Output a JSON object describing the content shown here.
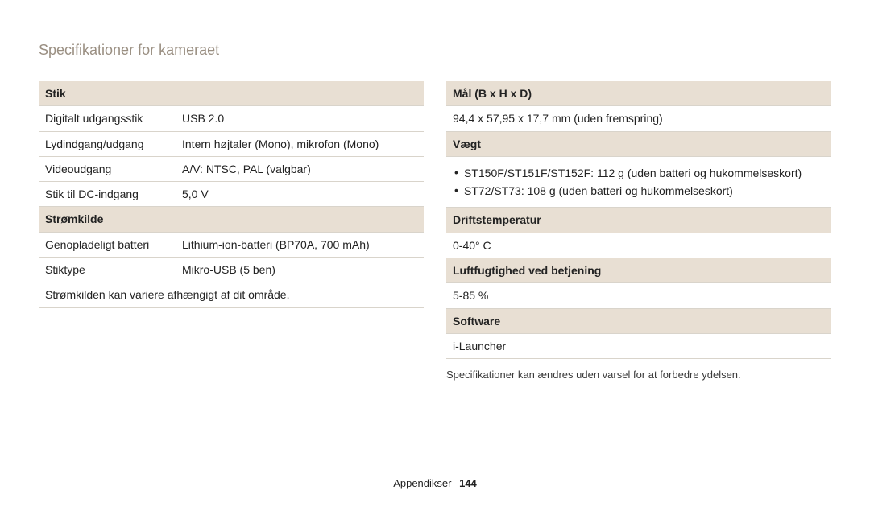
{
  "title": "Specifikationer for kameraet",
  "footer_label": "Appendikser",
  "footer_page": "144",
  "colors": {
    "title": "#9a8f82",
    "header_bg": "#e8dfd3",
    "border": "#d9d4cb",
    "text": "#222222",
    "bg": "#ffffff"
  },
  "left": {
    "section1_header": "Stik",
    "rows1": [
      {
        "label": "Digitalt udgangsstik",
        "value": "USB 2.0"
      },
      {
        "label": "Lydindgang/udgang",
        "value": "Intern højtaler (Mono), mikrofon (Mono)"
      },
      {
        "label": "Videoudgang",
        "value": "A/V: NTSC, PAL (valgbar)"
      },
      {
        "label": "Stik til DC-indgang",
        "value": "5,0 V"
      }
    ],
    "section2_header": "Strømkilde",
    "rows2": [
      {
        "label": "Genopladeligt batteri",
        "value": "Lithium-ion-batteri (BP70A, 700 mAh)"
      },
      {
        "label": "Stiktype",
        "value": "Mikro-USB (5 ben)"
      }
    ],
    "note": "Strømkilden kan variere afhængigt af dit område."
  },
  "right": {
    "section1_header": "Mål (B x H x D)",
    "section1_value": "94,4 x 57,95 x 17,7 mm (uden fremspring)",
    "section2_header": "Vægt",
    "section2_bullets": [
      "ST150F/ST151F/ST152F: 112 g (uden batteri og hukommelseskort)",
      "ST72/ST73: 108 g (uden batteri og hukommelseskort)"
    ],
    "section3_header": "Driftstemperatur",
    "section3_value": "0-40° C",
    "section4_header": "Luftfugtighed ved betjening",
    "section4_value": "5-85 %",
    "section5_header": "Software",
    "section5_value": "i-Launcher",
    "note": "Specifikationer kan ændres uden varsel for at forbedre ydelsen."
  }
}
